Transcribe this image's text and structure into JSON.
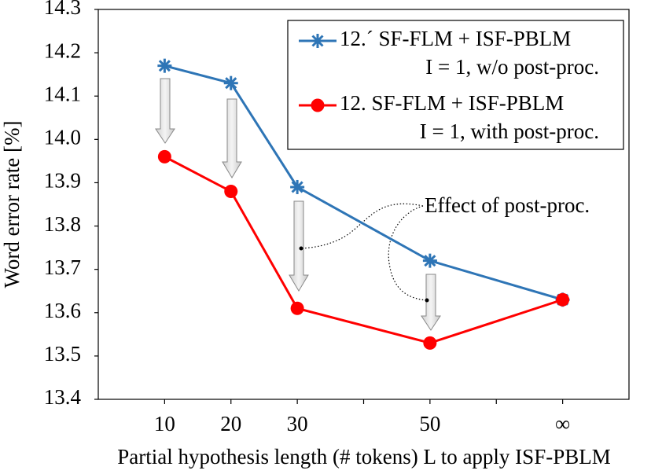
{
  "chart_data": {
    "type": "line",
    "x_label": "Partial hypothesis length (# tokens) L to apply ISF-PBLM",
    "y_label": "Word error rate [%]",
    "categories": [
      "10",
      "20",
      "30",
      "50",
      "∞"
    ],
    "series": [
      {
        "name": "12.´ SF-FLM + ISF-PBLM",
        "detail": "I = 1, w/o post-proc.",
        "color": "#2e75b6",
        "marker": "asterisk",
        "values": [
          14.17,
          14.13,
          13.89,
          13.72,
          13.63
        ]
      },
      {
        "name": "12. SF-FLM + ISF-PBLM",
        "detail": "I = 1, with post-proc.",
        "color": "#ff0000",
        "marker": "circle",
        "values": [
          13.96,
          13.88,
          13.61,
          13.53,
          13.63
        ]
      }
    ],
    "ylim": [
      13.4,
      14.3
    ],
    "yticks": [
      13.4,
      13.5,
      13.6,
      13.7,
      13.8,
      13.9,
      {
        "value": 14,
        "label": "14.0"
      },
      14.1,
      14.2,
      14.3
    ],
    "annotation": "Effect of post-proc.",
    "legend": "top-right"
  }
}
